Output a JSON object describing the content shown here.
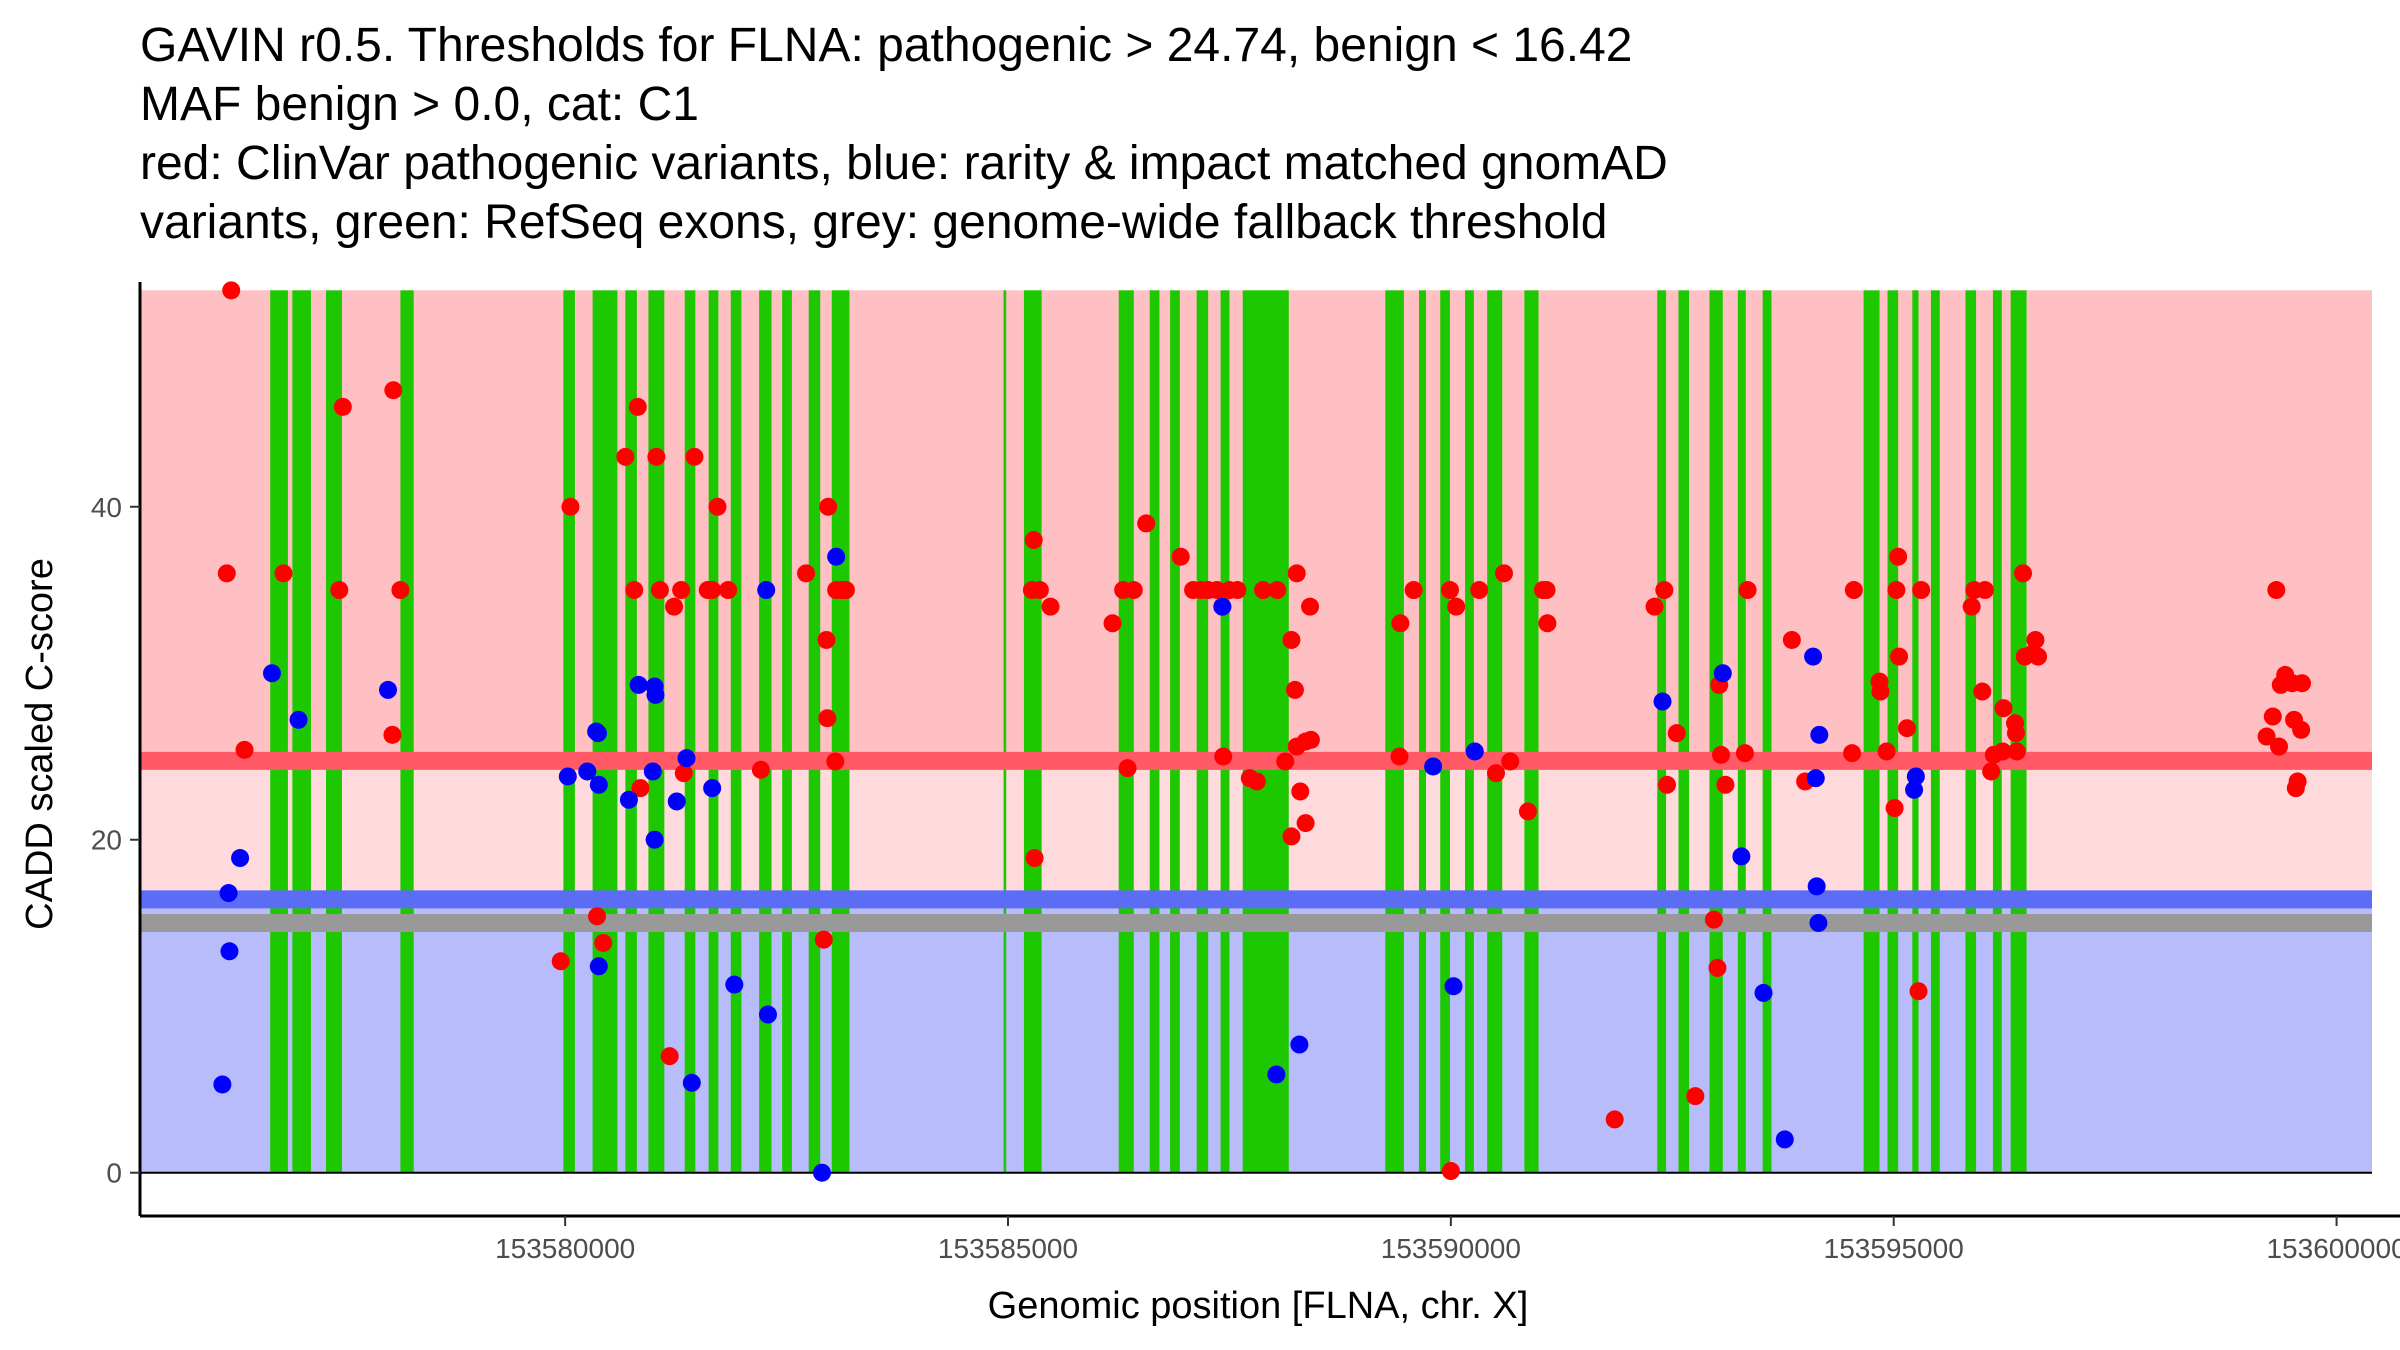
{
  "chart_data": {
    "type": "scatter",
    "title": "GAVIN r0.5. Thresholds for FLNA: pathogenic > 24.74, benign < 16.42\nMAF benign > 0.0, cat: C1\nred: ClinVar pathogenic variants, blue: rarity & impact matched gnomAD\nvariants, green: RefSeq exons, grey: genome-wide fallback threshold",
    "xlabel": "Genomic position [FLNA, chr. X]",
    "ylabel": "CADD scaled C-score",
    "xlim": [
      153575200,
      153600400
    ],
    "ylim": [
      -2.6,
      53.5
    ],
    "x_ticks": [
      153580000,
      153585000,
      153590000,
      153595000,
      153600000
    ],
    "x_tick_labels": [
      "153580000",
      "153585000",
      "153590000",
      "153595000",
      "153600000"
    ],
    "y_ticks": [
      0,
      20,
      40
    ],
    "y_tick_labels": [
      "0",
      "20",
      "40"
    ],
    "thresholds": {
      "pathogenic": 24.74,
      "benign": 16.42,
      "fallback": 15.0,
      "region_top": 53.0
    },
    "colors": {
      "pathogenic_region": "#ffc0c4",
      "middle_region": "#ffdadd",
      "benign_region": "#b9bcfb",
      "pathogenic_line": "#ff5a66",
      "benign_line": "#5b6cf5",
      "fallback_line": "#999999",
      "exon": "#1ec800",
      "clinvar": "#ff0000",
      "gnomad": "#0000ff"
    },
    "exons": [
      [
        153576670,
        153576870
      ],
      [
        153576920,
        153577130
      ],
      [
        153577300,
        153577480
      ],
      [
        153578140,
        153578290
      ],
      [
        153579980,
        153580110
      ],
      [
        153580310,
        153580590
      ],
      [
        153580680,
        153580810
      ],
      [
        153580940,
        153581120
      ],
      [
        153581350,
        153581470
      ],
      [
        153581620,
        153581730
      ],
      [
        153581870,
        153581990
      ],
      [
        153582190,
        153582330
      ],
      [
        153582450,
        153582560
      ],
      [
        153582750,
        153582880
      ],
      [
        153583010,
        153583210
      ],
      [
        153584950,
        153584980
      ],
      [
        153585180,
        153585380
      ],
      [
        153586250,
        153586420
      ],
      [
        153586600,
        153586710
      ],
      [
        153586830,
        153586940
      ],
      [
        153587130,
        153587260
      ],
      [
        153587400,
        153587500
      ],
      [
        153587650,
        153588170
      ],
      [
        153589260,
        153589470
      ],
      [
        153589640,
        153589720
      ],
      [
        153589880,
        153589990
      ],
      [
        153590160,
        153590260
      ],
      [
        153590410,
        153590580
      ],
      [
        153590830,
        153590990
      ],
      [
        153592330,
        153592430
      ],
      [
        153592570,
        153592690
      ],
      [
        153592920,
        153593070
      ],
      [
        153593240,
        153593330
      ],
      [
        153593520,
        153593620
      ],
      [
        153594660,
        153594840
      ],
      [
        153594930,
        153595050
      ],
      [
        153595210,
        153595280
      ],
      [
        153595420,
        153595520
      ],
      [
        153595810,
        153595930
      ],
      [
        153596120,
        153596220
      ],
      [
        153596320,
        153596500
      ]
    ],
    "series": [
      {
        "name": "ClinVar pathogenic variants",
        "points": [
          [
            153576230,
            53
          ],
          [
            153576180,
            36
          ],
          [
            153576380,
            25.4
          ],
          [
            153576820,
            36
          ],
          [
            153577490,
            46
          ],
          [
            153577450,
            35
          ],
          [
            153578060,
            47
          ],
          [
            153578140,
            35
          ],
          [
            153578050,
            26.3
          ],
          [
            153579950,
            12.7
          ],
          [
            153580060,
            40
          ],
          [
            153580360,
            15.4
          ],
          [
            153580430,
            13.8
          ],
          [
            153580680,
            43
          ],
          [
            153580780,
            35
          ],
          [
            153580820,
            46
          ],
          [
            153580850,
            23.1
          ],
          [
            153581030,
            43
          ],
          [
            153581070,
            35
          ],
          [
            153581180,
            7
          ],
          [
            153581230,
            34
          ],
          [
            153581310,
            35
          ],
          [
            153581340,
            24
          ],
          [
            153581460,
            43
          ],
          [
            153581610,
            35
          ],
          [
            153581660,
            35
          ],
          [
            153581720,
            40
          ],
          [
            153581840,
            35
          ],
          [
            153582210,
            24.2
          ],
          [
            153582720,
            36
          ],
          [
            153582920,
            14
          ],
          [
            153582950,
            32
          ],
          [
            153582960,
            27.3
          ],
          [
            153582970,
            40
          ],
          [
            153583060,
            35
          ],
          [
            153583120,
            35
          ],
          [
            153583050,
            24.7
          ],
          [
            153583170,
            35
          ],
          [
            153585290,
            38
          ],
          [
            153585270,
            35
          ],
          [
            153585360,
            35
          ],
          [
            153585480,
            34
          ],
          [
            153585300,
            18.9
          ],
          [
            153586180,
            33
          ],
          [
            153586300,
            35
          ],
          [
            153586350,
            24.3
          ],
          [
            153586420,
            35
          ],
          [
            153586560,
            39
          ],
          [
            153586950,
            37
          ],
          [
            153587090,
            35
          ],
          [
            153587180,
            35
          ],
          [
            153587260,
            35
          ],
          [
            153587360,
            35
          ],
          [
            153587420,
            34
          ],
          [
            153587430,
            25
          ],
          [
            153587500,
            35
          ],
          [
            153587590,
            35
          ],
          [
            153587730,
            23.7
          ],
          [
            153587810,
            23.5
          ],
          [
            153587880,
            35
          ],
          [
            153588040,
            35
          ],
          [
            153588130,
            24.7
          ],
          [
            153588200,
            32
          ],
          [
            153588240,
            29
          ],
          [
            153588260,
            36
          ],
          [
            153588200,
            20.2
          ],
          [
            153588260,
            25.6
          ],
          [
            153588300,
            22.9
          ],
          [
            153588360,
            25.9
          ],
          [
            153588360,
            21
          ],
          [
            153588420,
            26
          ],
          [
            153588410,
            34
          ],
          [
            153589420,
            25
          ],
          [
            153589430,
            33
          ],
          [
            153589580,
            35
          ],
          [
            153589990,
            35
          ],
          [
            153590000,
            0.1
          ],
          [
            153590060,
            34
          ],
          [
            153590320,
            35
          ],
          [
            153590510,
            24
          ],
          [
            153590600,
            36
          ],
          [
            153590670,
            24.7
          ],
          [
            153590870,
            21.7
          ],
          [
            153591040,
            35
          ],
          [
            153591090,
            33
          ],
          [
            153591080,
            35
          ],
          [
            153591850,
            3.2
          ],
          [
            153592300,
            34
          ],
          [
            153592410,
            35
          ],
          [
            153592440,
            23.3
          ],
          [
            153592550,
            26.4
          ],
          [
            153592760,
            4.6
          ],
          [
            153592970,
            15.2
          ],
          [
            153593010,
            12.3
          ],
          [
            153593030,
            29.3
          ],
          [
            153593050,
            25.1
          ],
          [
            153593100,
            23.3
          ],
          [
            153593320,
            25.2
          ],
          [
            153593350,
            35
          ],
          [
            153593850,
            32
          ],
          [
            153594000,
            23.5
          ],
          [
            153594550,
            35
          ],
          [
            153594530,
            25.2
          ],
          [
            153594840,
            29.5
          ],
          [
            153594850,
            28.9
          ],
          [
            153594920,
            25.3
          ],
          [
            153595010,
            21.9
          ],
          [
            153595030,
            35
          ],
          [
            153595050,
            37
          ],
          [
            153595060,
            31
          ],
          [
            153595150,
            26.7
          ],
          [
            153595280,
            10.9
          ],
          [
            153595310,
            35
          ],
          [
            153595880,
            34
          ],
          [
            153595910,
            35
          ],
          [
            153596030,
            35
          ],
          [
            153596000,
            28.9
          ],
          [
            153596100,
            24.1
          ],
          [
            153596130,
            25.1
          ],
          [
            153596230,
            25.3
          ],
          [
            153596240,
            27.9
          ],
          [
            153596370,
            27
          ],
          [
            153596380,
            26.4
          ],
          [
            153596390,
            25.3
          ],
          [
            153596460,
            36
          ],
          [
            153596480,
            31
          ],
          [
            153596570,
            31.2
          ],
          [
            153596600,
            32
          ],
          [
            153596630,
            31
          ],
          [
            153599210,
            26.2
          ],
          [
            153599280,
            27.4
          ],
          [
            153599320,
            35
          ],
          [
            153599350,
            25.6
          ],
          [
            153599370,
            29.3
          ],
          [
            153599420,
            29.9
          ],
          [
            153599500,
            29.4
          ],
          [
            153599520,
            27.2
          ],
          [
            153599540,
            23.1
          ],
          [
            153599560,
            23.5
          ],
          [
            153599600,
            26.6
          ],
          [
            153599610,
            29.4
          ]
        ]
      },
      {
        "name": "rarity & impact matched gnomAD variants",
        "points": [
          [
            153576130,
            5.3
          ],
          [
            153576200,
            16.8
          ],
          [
            153576210,
            13.3
          ],
          [
            153576330,
            18.9
          ],
          [
            153576690,
            30
          ],
          [
            153576990,
            27.2
          ],
          [
            153578000,
            29
          ],
          [
            153580030,
            23.8
          ],
          [
            153580250,
            24.1
          ],
          [
            153580350,
            26.5
          ],
          [
            153580370,
            26.4
          ],
          [
            153580380,
            23.3
          ],
          [
            153580380,
            12.4
          ],
          [
            153580720,
            22.4
          ],
          [
            153580830,
            29.3
          ],
          [
            153580990,
            24.1
          ],
          [
            153581010,
            29.2
          ],
          [
            153581010,
            20
          ],
          [
            153581020,
            28.7
          ],
          [
            153581260,
            22.3
          ],
          [
            153581370,
            24.9
          ],
          [
            153581430,
            5.4
          ],
          [
            153581660,
            23.1
          ],
          [
            153581910,
            11.3
          ],
          [
            153582290,
            9.5
          ],
          [
            153582270,
            35
          ],
          [
            153582900,
            0
          ],
          [
            153583060,
            37
          ],
          [
            153587420,
            34
          ],
          [
            153588030,
            5.9
          ],
          [
            153588290,
            7.7
          ],
          [
            153589800,
            24.4
          ],
          [
            153590030,
            11.2
          ],
          [
            153590270,
            25.3
          ],
          [
            153592390,
            28.3
          ],
          [
            153593070,
            30
          ],
          [
            153593280,
            19
          ],
          [
            153593530,
            10.8
          ],
          [
            153593770,
            2
          ],
          [
            153594090,
            31
          ],
          [
            153594160,
            26.3
          ],
          [
            153594120,
            23.7
          ],
          [
            153594130,
            17.2
          ],
          [
            153594150,
            15
          ],
          [
            153595250,
            23.8
          ],
          [
            153595230,
            23
          ]
        ]
      }
    ]
  }
}
